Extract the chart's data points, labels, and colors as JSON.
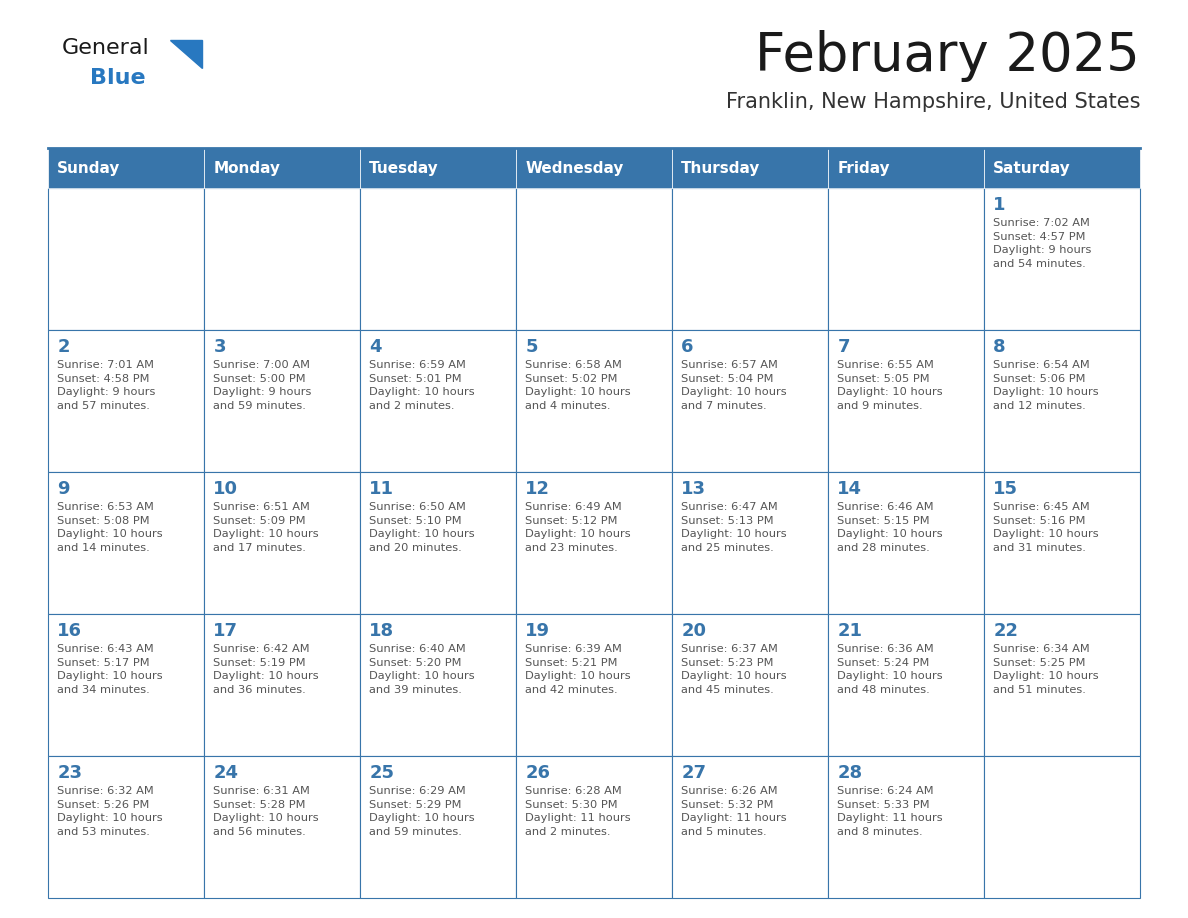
{
  "title": "February 2025",
  "subtitle": "Franklin, New Hampshire, United States",
  "days_of_week": [
    "Sunday",
    "Monday",
    "Tuesday",
    "Wednesday",
    "Thursday",
    "Friday",
    "Saturday"
  ],
  "header_bg": "#3875aa",
  "header_text": "#ffffff",
  "cell_bg_white": "#ffffff",
  "border_color": "#3875aa",
  "day_number_color": "#3875aa",
  "info_text_color": "#555555",
  "title_color": "#1a1a1a",
  "subtitle_color": "#333333",
  "logo_general_color": "#1a1a1a",
  "logo_blue_color": "#2878c0",
  "weeks": [
    [
      null,
      null,
      null,
      null,
      null,
      null,
      1
    ],
    [
      2,
      3,
      4,
      5,
      6,
      7,
      8
    ],
    [
      9,
      10,
      11,
      12,
      13,
      14,
      15
    ],
    [
      16,
      17,
      18,
      19,
      20,
      21,
      22
    ],
    [
      23,
      24,
      25,
      26,
      27,
      28,
      null
    ]
  ],
  "sunrise_data": {
    "1": "Sunrise: 7:02 AM\nSunset: 4:57 PM\nDaylight: 9 hours\nand 54 minutes.",
    "2": "Sunrise: 7:01 AM\nSunset: 4:58 PM\nDaylight: 9 hours\nand 57 minutes.",
    "3": "Sunrise: 7:00 AM\nSunset: 5:00 PM\nDaylight: 9 hours\nand 59 minutes.",
    "4": "Sunrise: 6:59 AM\nSunset: 5:01 PM\nDaylight: 10 hours\nand 2 minutes.",
    "5": "Sunrise: 6:58 AM\nSunset: 5:02 PM\nDaylight: 10 hours\nand 4 minutes.",
    "6": "Sunrise: 6:57 AM\nSunset: 5:04 PM\nDaylight: 10 hours\nand 7 minutes.",
    "7": "Sunrise: 6:55 AM\nSunset: 5:05 PM\nDaylight: 10 hours\nand 9 minutes.",
    "8": "Sunrise: 6:54 AM\nSunset: 5:06 PM\nDaylight: 10 hours\nand 12 minutes.",
    "9": "Sunrise: 6:53 AM\nSunset: 5:08 PM\nDaylight: 10 hours\nand 14 minutes.",
    "10": "Sunrise: 6:51 AM\nSunset: 5:09 PM\nDaylight: 10 hours\nand 17 minutes.",
    "11": "Sunrise: 6:50 AM\nSunset: 5:10 PM\nDaylight: 10 hours\nand 20 minutes.",
    "12": "Sunrise: 6:49 AM\nSunset: 5:12 PM\nDaylight: 10 hours\nand 23 minutes.",
    "13": "Sunrise: 6:47 AM\nSunset: 5:13 PM\nDaylight: 10 hours\nand 25 minutes.",
    "14": "Sunrise: 6:46 AM\nSunset: 5:15 PM\nDaylight: 10 hours\nand 28 minutes.",
    "15": "Sunrise: 6:45 AM\nSunset: 5:16 PM\nDaylight: 10 hours\nand 31 minutes.",
    "16": "Sunrise: 6:43 AM\nSunset: 5:17 PM\nDaylight: 10 hours\nand 34 minutes.",
    "17": "Sunrise: 6:42 AM\nSunset: 5:19 PM\nDaylight: 10 hours\nand 36 minutes.",
    "18": "Sunrise: 6:40 AM\nSunset: 5:20 PM\nDaylight: 10 hours\nand 39 minutes.",
    "19": "Sunrise: 6:39 AM\nSunset: 5:21 PM\nDaylight: 10 hours\nand 42 minutes.",
    "20": "Sunrise: 6:37 AM\nSunset: 5:23 PM\nDaylight: 10 hours\nand 45 minutes.",
    "21": "Sunrise: 6:36 AM\nSunset: 5:24 PM\nDaylight: 10 hours\nand 48 minutes.",
    "22": "Sunrise: 6:34 AM\nSunset: 5:25 PM\nDaylight: 10 hours\nand 51 minutes.",
    "23": "Sunrise: 6:32 AM\nSunset: 5:26 PM\nDaylight: 10 hours\nand 53 minutes.",
    "24": "Sunrise: 6:31 AM\nSunset: 5:28 PM\nDaylight: 10 hours\nand 56 minutes.",
    "25": "Sunrise: 6:29 AM\nSunset: 5:29 PM\nDaylight: 10 hours\nand 59 minutes.",
    "26": "Sunrise: 6:28 AM\nSunset: 5:30 PM\nDaylight: 11 hours\nand 2 minutes.",
    "27": "Sunrise: 6:26 AM\nSunset: 5:32 PM\nDaylight: 11 hours\nand 5 minutes.",
    "28": "Sunrise: 6:24 AM\nSunset: 5:33 PM\nDaylight: 11 hours\nand 8 minutes."
  }
}
